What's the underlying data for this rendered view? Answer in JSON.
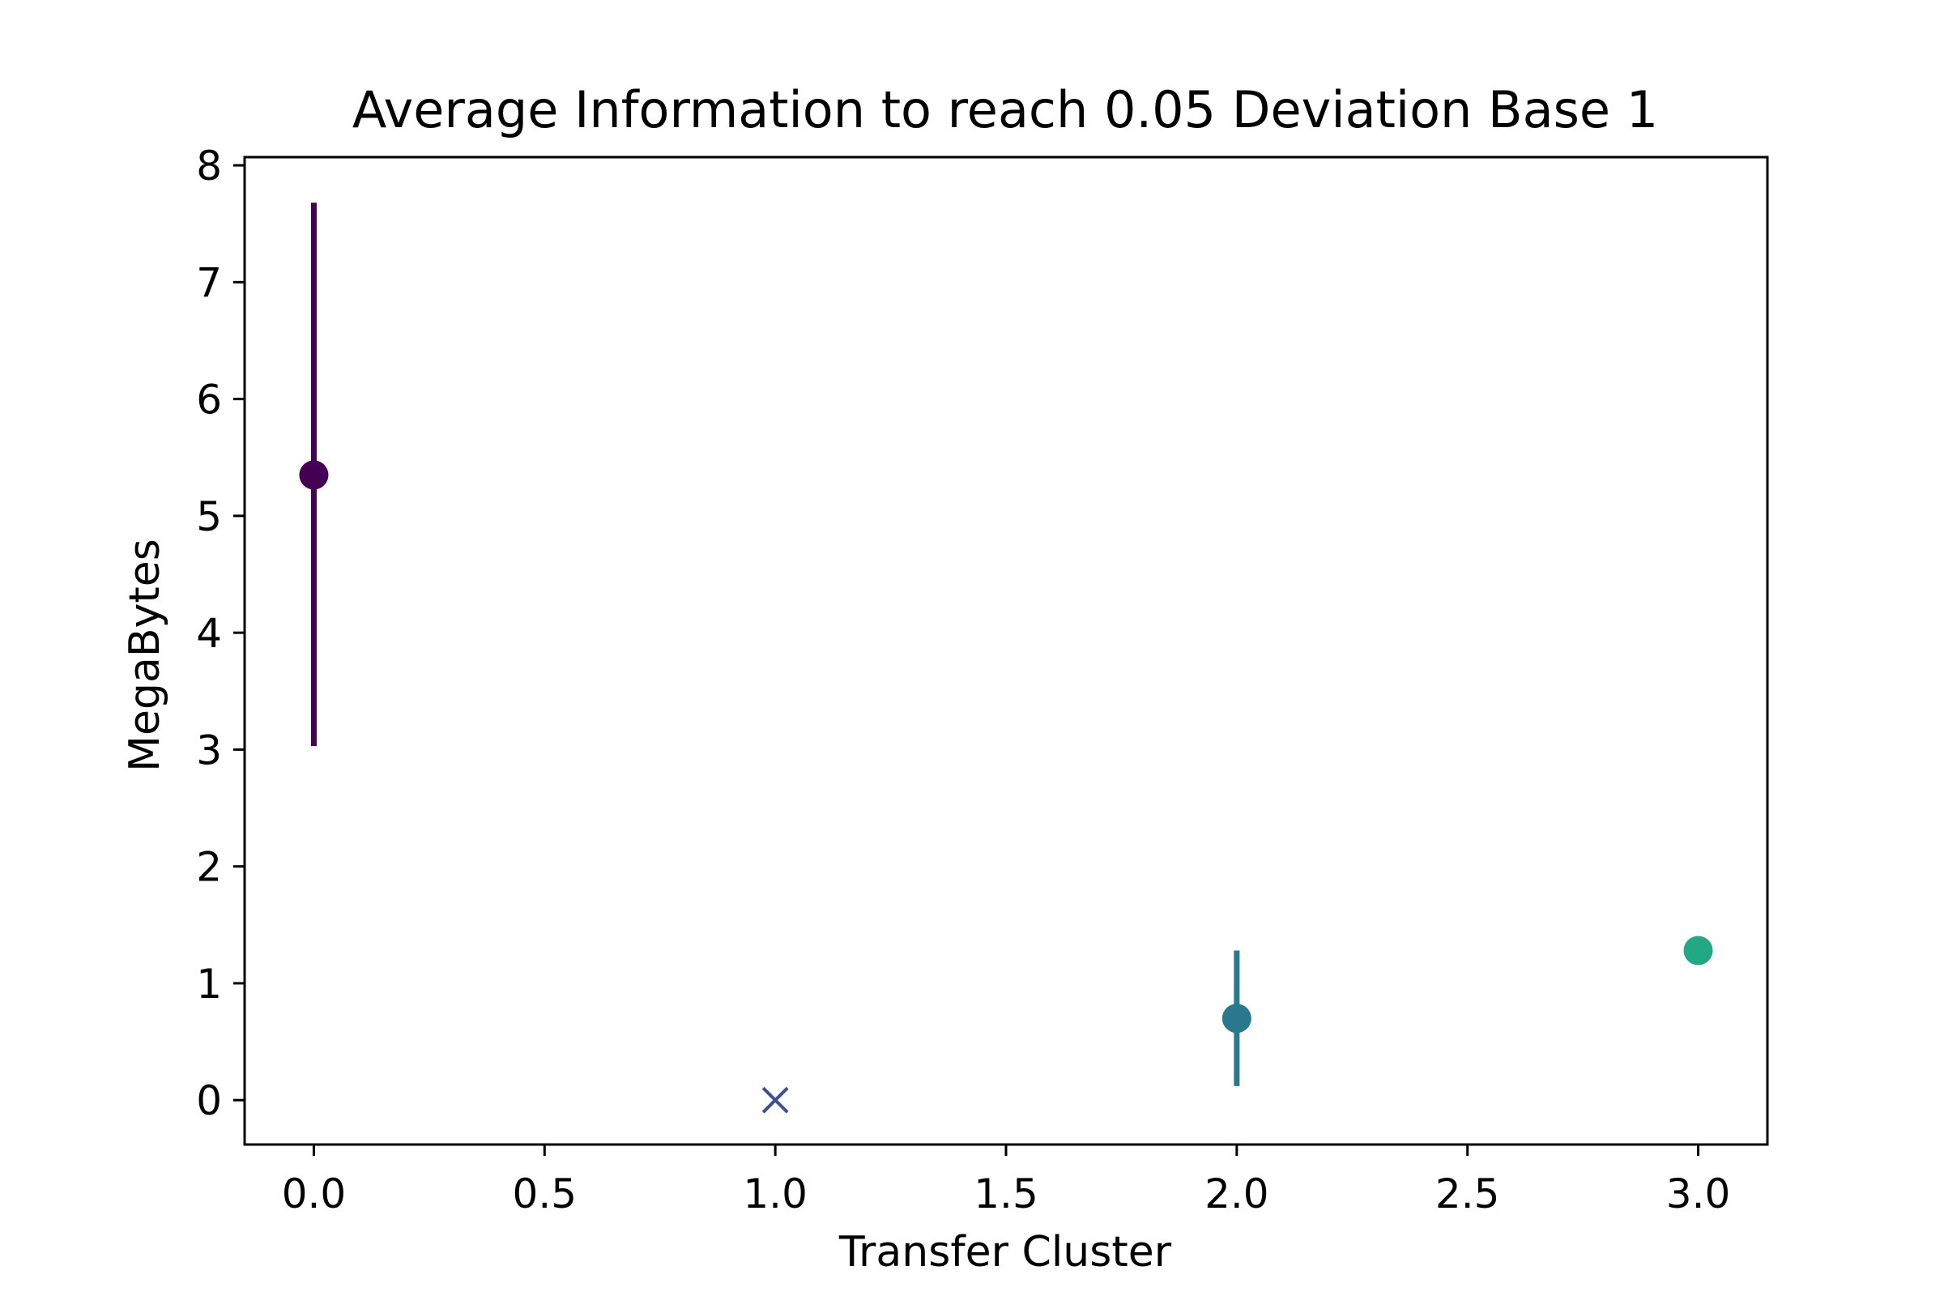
{
  "chart_data": {
    "type": "scatter",
    "title": "Average Information to reach 0.05 Deviation Base 1",
    "xlabel": "Transfer Cluster",
    "ylabel": "MegaBytes",
    "xlim": [
      -0.15,
      3.15
    ],
    "ylim": [
      -0.38,
      8.07
    ],
    "xticks": [
      0.0,
      0.5,
      1.0,
      1.5,
      2.0,
      2.5,
      3.0
    ],
    "xtick_labels": [
      "0.0",
      "0.5",
      "1.0",
      "1.5",
      "2.0",
      "2.5",
      "3.0"
    ],
    "yticks": [
      0,
      1,
      2,
      3,
      4,
      5,
      6,
      7,
      8
    ],
    "ytick_labels": [
      "0",
      "1",
      "2",
      "3",
      "4",
      "5",
      "6",
      "7",
      "8"
    ],
    "grid": false,
    "points": [
      {
        "x": 0.0,
        "y": 5.35,
        "err_low": 3.03,
        "err_high": 7.68,
        "marker": "circle",
        "color": "#440154"
      },
      {
        "x": 1.0,
        "y": 0.0,
        "marker": "x",
        "color": "#3b528b"
      },
      {
        "x": 2.0,
        "y": 0.7,
        "err_low": 0.12,
        "err_high": 1.28,
        "marker": "circle",
        "color": "#2a788e"
      },
      {
        "x": 3.0,
        "y": 1.28,
        "marker": "circle",
        "color": "#22a884"
      }
    ]
  }
}
